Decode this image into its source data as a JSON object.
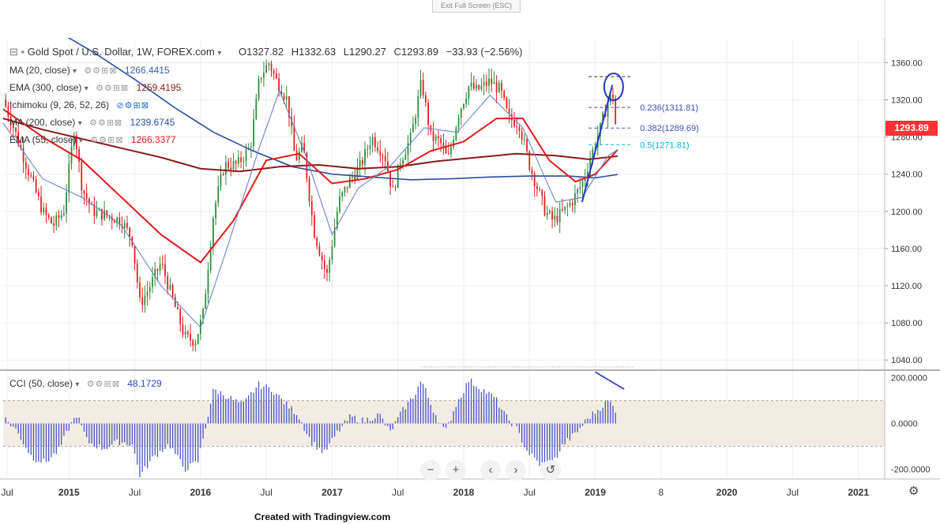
{
  "app": {
    "exit_fullscreen": "Exit Full Screen (ESC)",
    "credit": "Created with Tradingview.com"
  },
  "header": {
    "symbol": "Gold Spot / U.S. Dollar, 1W, FOREX.com",
    "open": "O1327.82",
    "high": "H1332.63",
    "low": "L1290.27",
    "close": "C1293.89",
    "change": "−33.93 (−2.56%)"
  },
  "indicators": [
    {
      "label": "MA (20, close)",
      "value": "1266.4415",
      "color": "#3f5fa8"
    },
    {
      "label": "EMA (300, close)",
      "value": "1259.4195",
      "color": "#8b1a1a"
    },
    {
      "label": "Ichimoku (9, 26, 52, 26)",
      "value": "",
      "color": "#3f5fa8"
    },
    {
      "label": "MA (200, close)",
      "value": "1239.6745",
      "color": "#2a4da0"
    },
    {
      "label": "EMA (55, close)",
      "value": "1266.3377",
      "color": "#e01b1b"
    }
  ],
  "cci": {
    "label": "CCI (50, close)",
    "value": "48.1729",
    "color": "#3344cc"
  },
  "last_price": "1293.89",
  "fib_levels": [
    {
      "label": "0.236(1311.81)",
      "price": 1311.81,
      "color": "#3f51b5"
    },
    {
      "label": "0.382(1289.69)",
      "price": 1289.69,
      "color": "#3f51b5"
    },
    {
      "label": "0.5(1271.81)",
      "price": 1271.81,
      "color": "#00b7d9"
    }
  ],
  "nav": {
    "zoom_out": "−",
    "zoom_in": "+",
    "prev": "‹",
    "next": "›",
    "reset": "↺"
  },
  "colors": {
    "up": "#2e8b3a",
    "down": "#e31c1c",
    "grid": "#eeeeee"
  },
  "chart_data": {
    "type": "candlestick",
    "interval": "1W",
    "price_axis": {
      "ticks": [
        1360,
        1320,
        1280,
        1240,
        1200,
        1160,
        1120,
        1080,
        1040
      ],
      "tick_labels": [
        "1360.00",
        "1320.00",
        "1280.00",
        "1240.00",
        "1200.00",
        "1160.00",
        "1120.00",
        "1080.00",
        "1040.00"
      ],
      "range": [
        1030,
        1385
      ]
    },
    "cci_axis": {
      "ticks": [
        200,
        0,
        -200
      ],
      "tick_labels": [
        "200.0000",
        "0.0000",
        "-200.0000"
      ],
      "range": [
        -240,
        230
      ]
    },
    "time_axis": {
      "labels": [
        "Jul",
        "2015",
        "Jul",
        "2016",
        "Jul",
        "2017",
        "Jul",
        "2018",
        "Jul",
        "2019",
        "8",
        "2020",
        "Jul",
        "2021"
      ],
      "start": 2014.5,
      "end": 2021.2
    },
    "price_path": [
      [
        2014.5,
        1320
      ],
      [
        2014.58,
        1290
      ],
      [
        2014.7,
        1240
      ],
      [
        2014.8,
        1200
      ],
      [
        2014.88,
        1185
      ],
      [
        2014.96,
        1200
      ],
      [
        2015.04,
        1290
      ],
      [
        2015.1,
        1225
      ],
      [
        2015.18,
        1200
      ],
      [
        2015.3,
        1195
      ],
      [
        2015.4,
        1190
      ],
      [
        2015.48,
        1170
      ],
      [
        2015.54,
        1100
      ],
      [
        2015.6,
        1115
      ],
      [
        2015.7,
        1145
      ],
      [
        2015.8,
        1100
      ],
      [
        2015.88,
        1065
      ],
      [
        2015.96,
        1060
      ],
      [
        2016.02,
        1090
      ],
      [
        2016.1,
        1200
      ],
      [
        2016.18,
        1250
      ],
      [
        2016.28,
        1250
      ],
      [
        2016.38,
        1270
      ],
      [
        2016.45,
        1345
      ],
      [
        2016.52,
        1360
      ],
      [
        2016.58,
        1340
      ],
      [
        2016.66,
        1320
      ],
      [
        2016.72,
        1255
      ],
      [
        2016.78,
        1270
      ],
      [
        2016.86,
        1180
      ],
      [
        2016.96,
        1130
      ],
      [
        2017.05,
        1210
      ],
      [
        2017.14,
        1235
      ],
      [
        2017.22,
        1250
      ],
      [
        2017.3,
        1280
      ],
      [
        2017.4,
        1260
      ],
      [
        2017.46,
        1220
      ],
      [
        2017.52,
        1255
      ],
      [
        2017.6,
        1280
      ],
      [
        2017.68,
        1340
      ],
      [
        2017.75,
        1280
      ],
      [
        2017.82,
        1275
      ],
      [
        2017.88,
        1255
      ],
      [
        2017.96,
        1305
      ],
      [
        2018.04,
        1335
      ],
      [
        2018.1,
        1330
      ],
      [
        2018.2,
        1340
      ],
      [
        2018.28,
        1330
      ],
      [
        2018.34,
        1300
      ],
      [
        2018.42,
        1295
      ],
      [
        2018.5,
        1250
      ],
      [
        2018.56,
        1225
      ],
      [
        2018.62,
        1200
      ],
      [
        2018.68,
        1190
      ],
      [
        2018.76,
        1200
      ],
      [
        2018.82,
        1210
      ],
      [
        2018.9,
        1230
      ],
      [
        2018.98,
        1265
      ],
      [
        2019.04,
        1290
      ],
      [
        2019.1,
        1320
      ],
      [
        2019.16,
        1327.82
      ],
      [
        2019.17,
        1293.89
      ]
    ],
    "cci_path": [
      [
        2014.5,
        30
      ],
      [
        2014.6,
        -30
      ],
      [
        2014.72,
        -150
      ],
      [
        2014.82,
        -170
      ],
      [
        2014.92,
        -120
      ],
      [
        2015.0,
        -20
      ],
      [
        2015.06,
        40
      ],
      [
        2015.14,
        -80
      ],
      [
        2015.26,
        -110
      ],
      [
        2015.38,
        -80
      ],
      [
        2015.48,
        -90
      ],
      [
        2015.54,
        -230
      ],
      [
        2015.64,
        -150
      ],
      [
        2015.76,
        -90
      ],
      [
        2015.88,
        -200
      ],
      [
        2015.98,
        -170
      ],
      [
        2016.04,
        -10
      ],
      [
        2016.1,
        150
      ],
      [
        2016.2,
        120
      ],
      [
        2016.32,
        80
      ],
      [
        2016.44,
        170
      ],
      [
        2016.54,
        150
      ],
      [
        2016.64,
        90
      ],
      [
        2016.74,
        40
      ],
      [
        2016.84,
        -80
      ],
      [
        2016.94,
        -130
      ],
      [
        2017.04,
        -40
      ],
      [
        2017.14,
        30
      ],
      [
        2017.24,
        10
      ],
      [
        2017.36,
        40
      ],
      [
        2017.44,
        -40
      ],
      [
        2017.54,
        60
      ],
      [
        2017.62,
        120
      ],
      [
        2017.68,
        190
      ],
      [
        2017.76,
        70
      ],
      [
        2017.86,
        -40
      ],
      [
        2017.94,
        80
      ],
      [
        2018.04,
        190
      ],
      [
        2018.14,
        150
      ],
      [
        2018.24,
        110
      ],
      [
        2018.32,
        30
      ],
      [
        2018.4,
        -20
      ],
      [
        2018.48,
        -120
      ],
      [
        2018.58,
        -180
      ],
      [
        2018.68,
        -170
      ],
      [
        2018.76,
        -90
      ],
      [
        2018.86,
        -40
      ],
      [
        2018.94,
        20
      ],
      [
        2019.04,
        70
      ],
      [
        2019.1,
        100
      ],
      [
        2019.17,
        48.17
      ]
    ],
    "ma20_path": [
      [
        2014.5,
        1295
      ],
      [
        2014.8,
        1235
      ],
      [
        2015.1,
        1215
      ],
      [
        2015.4,
        1185
      ],
      [
        2015.7,
        1120
      ],
      [
        2016.0,
        1075
      ],
      [
        2016.2,
        1160
      ],
      [
        2016.45,
        1270
      ],
      [
        2016.6,
        1330
      ],
      [
        2016.8,
        1260
      ],
      [
        2017.0,
        1175
      ],
      [
        2017.2,
        1225
      ],
      [
        2017.45,
        1250
      ],
      [
        2017.7,
        1290
      ],
      [
        2017.95,
        1285
      ],
      [
        2018.2,
        1325
      ],
      [
        2018.45,
        1290
      ],
      [
        2018.7,
        1210
      ],
      [
        2018.9,
        1215
      ],
      [
        2019.1,
        1260
      ],
      [
        2019.17,
        1266.44
      ]
    ],
    "ema55_path": [
      [
        2014.5,
        1310
      ],
      [
        2014.8,
        1280
      ],
      [
        2015.1,
        1255
      ],
      [
        2015.4,
        1215
      ],
      [
        2015.7,
        1175
      ],
      [
        2016.0,
        1145
      ],
      [
        2016.25,
        1190
      ],
      [
        2016.5,
        1255
      ],
      [
        2016.75,
        1262
      ],
      [
        2017.0,
        1230
      ],
      [
        2017.25,
        1235
      ],
      [
        2017.5,
        1245
      ],
      [
        2017.75,
        1265
      ],
      [
        2018.0,
        1275
      ],
      [
        2018.25,
        1300
      ],
      [
        2018.45,
        1300
      ],
      [
        2018.65,
        1255
      ],
      [
        2018.85,
        1232
      ],
      [
        2019.0,
        1240
      ],
      [
        2019.17,
        1266.34
      ]
    ],
    "ema300_path": [
      [
        2014.5,
        1300
      ],
      [
        2014.8,
        1288
      ],
      [
        2015.1,
        1278
      ],
      [
        2015.4,
        1268
      ],
      [
        2015.7,
        1258
      ],
      [
        2016.0,
        1246
      ],
      [
        2016.3,
        1243
      ],
      [
        2016.6,
        1248
      ],
      [
        2016.9,
        1250
      ],
      [
        2017.2,
        1246
      ],
      [
        2017.5,
        1248
      ],
      [
        2017.8,
        1254
      ],
      [
        2018.1,
        1258
      ],
      [
        2018.4,
        1262
      ],
      [
        2018.7,
        1260
      ],
      [
        2018.95,
        1256
      ],
      [
        2019.17,
        1259.42
      ]
    ],
    "ma200_path": [
      [
        2014.9,
        1395
      ],
      [
        2015.2,
        1370
      ],
      [
        2015.5,
        1342
      ],
      [
        2015.8,
        1312
      ],
      [
        2016.1,
        1285
      ],
      [
        2016.4,
        1265
      ],
      [
        2016.7,
        1248
      ],
      [
        2017.0,
        1240
      ],
      [
        2017.3,
        1237
      ],
      [
        2017.6,
        1234
      ],
      [
        2017.9,
        1235
      ],
      [
        2018.2,
        1237
      ],
      [
        2018.5,
        1238
      ],
      [
        2018.8,
        1238
      ],
      [
        2019.0,
        1236
      ],
      [
        2019.17,
        1239.67
      ]
    ]
  }
}
